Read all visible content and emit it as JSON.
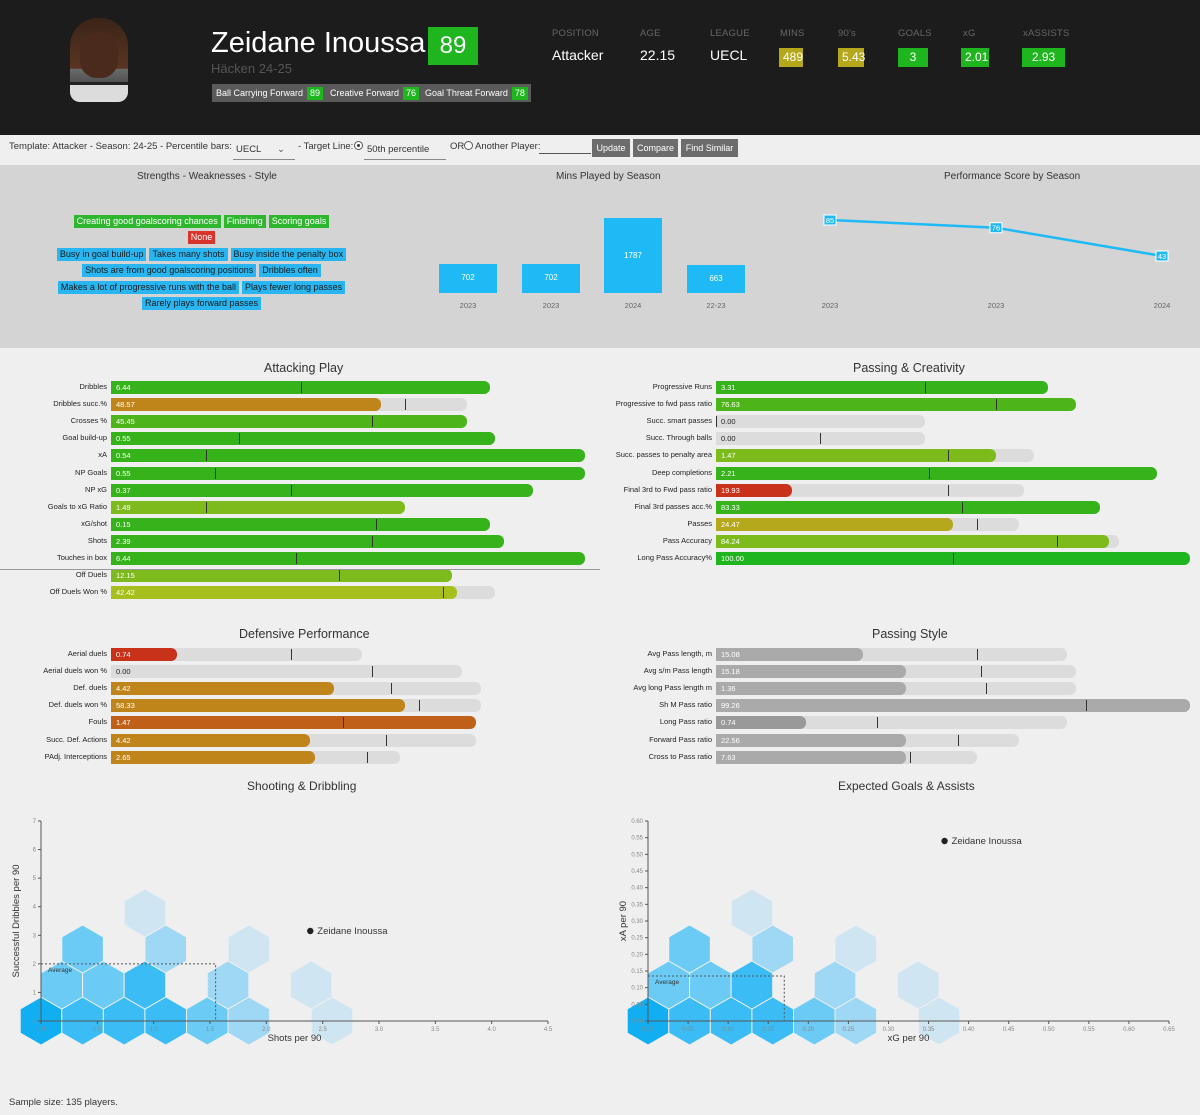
{
  "player": {
    "name": "Zeidane Inoussa",
    "rating": "89",
    "team": "Häcken 24-25",
    "roles": [
      {
        "label": "Ball Carrying Forward",
        "value": "89"
      },
      {
        "label": "Creative Forward",
        "value": "76"
      },
      {
        "label": "Goal Threat Forward",
        "value": "78"
      }
    ]
  },
  "stats": [
    {
      "label": "POSITION",
      "value": "Attacker"
    },
    {
      "label": "AGE",
      "value": "22.15"
    },
    {
      "label": "LEAGUE",
      "value": "UECL"
    },
    {
      "label": "MINS",
      "value": "489",
      "color": "#b5a81c"
    },
    {
      "label": "90's",
      "value": "5.43",
      "color": "#b5a81c"
    },
    {
      "label": "GOALS",
      "value": "3",
      "color": "#1fb51f"
    },
    {
      "label": "xG",
      "value": "2.01",
      "color": "#1fb51f"
    },
    {
      "label": "xASSISTS",
      "value": "2.93",
      "color": "#1fb51f"
    }
  ],
  "toolbar": {
    "template_text": "Template: Attacker - Season: 24-25 - Percentile bars:",
    "percentile_select": "UECL",
    "target_line_label": "- Target Line:",
    "target_select": "50th percentile",
    "or_label": "OR",
    "another_player_label": "Another Player:",
    "update": "Update",
    "compare": "Compare",
    "find_similar": "Find Similar"
  },
  "strengths_title": "Strengths - Weaknesses - Style",
  "strengths": [
    "Creating good goalscoring chances",
    "Finishing",
    "Scoring goals"
  ],
  "weaknesses": [
    "None"
  ],
  "style": [
    [
      "Busy in goal build-up",
      "Takes many shots",
      "Busy inside the penalty box"
    ],
    [
      "Shots are from good goalscoring positions",
      "Dribbles often"
    ],
    [
      "Makes a lot of progressive runs with the ball",
      "Plays fewer long passes"
    ],
    [
      "Rarely plays forward passes"
    ]
  ],
  "mins_chart": {
    "title": "Mins Played by Season",
    "type": "bar",
    "categories": [
      "2023",
      "2023",
      "2024",
      "22-23"
    ],
    "values": [
      702,
      702,
      1787,
      663
    ]
  },
  "perf_chart": {
    "title": "Performance Score by Season",
    "type": "line",
    "x": [
      "2023",
      "2023",
      "2024"
    ],
    "values": [
      85,
      76,
      43
    ]
  },
  "sections": [
    {
      "title": "Attacking Play",
      "bars": [
        {
          "label": "Dribbles",
          "value": "6.44",
          "color": "#36b21a",
          "pct": 0.8,
          "track": 0.8,
          "mark": 0.4
        },
        {
          "label": "Dribbles succ.%",
          "value": "48.57",
          "color": "#c0851a",
          "pct": 0.57,
          "track": 0.75,
          "mark": 0.62
        },
        {
          "label": "Crosses %",
          "value": "45.45",
          "color": "#4db51a",
          "pct": 0.75,
          "track": 0.75,
          "mark": 0.55
        },
        {
          "label": "Goal build-up",
          "value": "0.55",
          "color": "#36b21a",
          "pct": 0.81,
          "track": 0.81,
          "mark": 0.27
        },
        {
          "label": "xA",
          "value": "0.54",
          "color": "#36b21a",
          "pct": 1.0,
          "track": 1.0,
          "mark": 0.2
        },
        {
          "label": "NP Goals",
          "value": "0.55",
          "color": "#36b21a",
          "pct": 1.0,
          "track": 1.0,
          "mark": 0.22
        },
        {
          "label": "NP xG",
          "value": "0.37",
          "color": "#36b21a",
          "pct": 0.89,
          "track": 0.89,
          "mark": 0.38
        },
        {
          "label": "Goals to xG Ratio",
          "value": "1.49",
          "color": "#7dbb1c",
          "pct": 0.62,
          "track": 0.62,
          "mark": 0.2
        },
        {
          "label": "xG/shot",
          "value": "0.15",
          "color": "#36b21a",
          "pct": 0.8,
          "track": 0.8,
          "mark": 0.56
        },
        {
          "label": "Shots",
          "value": "2.39",
          "color": "#36b21a",
          "pct": 0.83,
          "track": 0.83,
          "mark": 0.55
        },
        {
          "label": "Touches in box",
          "value": "6.44",
          "color": "#36b21a",
          "pct": 1.0,
          "track": 1.0,
          "mark": 0.39
        },
        {
          "label": "Off Duels",
          "value": "12.15",
          "color": "#7dbb1c",
          "pct": 0.72,
          "track": 0.72,
          "mark": 0.48
        },
        {
          "label": "Off Duels Won %",
          "value": "42.42",
          "color": "#a7bf1c",
          "pct": 0.73,
          "track": 0.81,
          "mark": 0.7
        }
      ]
    },
    {
      "title": "Passing & Creativity",
      "bars": [
        {
          "label": "Progressive Runs",
          "value": "3.31",
          "color": "#36b21a",
          "pct": 0.7,
          "track": 0.7,
          "mark": 0.44
        },
        {
          "label": "Progressive to fwd pass ratio",
          "value": "76.63",
          "color": "#4db51a",
          "pct": 0.76,
          "track": 0.76,
          "mark": 0.59
        },
        {
          "label": "Succ. smart passes",
          "value": "0.00",
          "color": "#999",
          "pct": 0.0,
          "track": 0.44,
          "mark": 0.0
        },
        {
          "label": "Succ. Through balls",
          "value": "0.00",
          "color": "#999",
          "pct": 0.0,
          "track": 0.44,
          "mark": 0.22
        },
        {
          "label": "Succ. passes to penalty area",
          "value": "1.47",
          "color": "#7dbb1c",
          "pct": 0.59,
          "track": 0.67,
          "mark": 0.49
        },
        {
          "label": "Deep completions",
          "value": "2.21",
          "color": "#36b21a",
          "pct": 0.93,
          "track": 0.93,
          "mark": 0.45
        },
        {
          "label": "Final 3rd to Fwd pass ratio",
          "value": "19.93",
          "color": "#c8321b",
          "pct": 0.16,
          "track": 0.65,
          "mark": 0.49
        },
        {
          "label": "Final 3rd passes acc.%",
          "value": "83.33",
          "color": "#36b21a",
          "pct": 0.81,
          "track": 0.81,
          "mark": 0.52
        },
        {
          "label": "Passes",
          "value": "24.47",
          "color": "#b5a81c",
          "pct": 0.5,
          "track": 0.64,
          "mark": 0.55
        },
        {
          "label": "Pass Accuracy",
          "value": "84.24",
          "color": "#7dbb1c",
          "pct": 0.83,
          "track": 0.85,
          "mark": 0.72
        },
        {
          "label": "Long Pass Accuracy%",
          "value": "100.00",
          "color": "#1fb51f",
          "pct": 1.0,
          "track": 1.0,
          "mark": 0.5
        }
      ]
    },
    {
      "title": "Defensive Performance",
      "bars": [
        {
          "label": "Aerial duels",
          "value": "0.74",
          "color": "#c8321b",
          "pct": 0.14,
          "track": 0.53,
          "mark": 0.38
        },
        {
          "label": "Aerial duels won %",
          "value": "0.00",
          "color": "#999",
          "pct": 0.0,
          "track": 0.74,
          "mark": 0.55
        },
        {
          "label": "Def. duels",
          "value": "4.42",
          "color": "#c0851a",
          "pct": 0.47,
          "track": 0.78,
          "mark": 0.59
        },
        {
          "label": "Def. duels won %",
          "value": "58.33",
          "color": "#c0851a",
          "pct": 0.62,
          "track": 0.78,
          "mark": 0.65
        },
        {
          "label": "Fouls",
          "value": "1.47",
          "color": "#c06018",
          "pct": 0.77,
          "track": 0.77,
          "mark": 0.49
        },
        {
          "label": "Succ. Def. Actions",
          "value": "4.42",
          "color": "#c0851a",
          "pct": 0.42,
          "track": 0.77,
          "mark": 0.58
        },
        {
          "label": "PAdj. Interceptions",
          "value": "2.65",
          "color": "#c0851a",
          "pct": 0.43,
          "track": 0.61,
          "mark": 0.54
        }
      ]
    },
    {
      "title": "Passing Style",
      "bars": [
        {
          "label": "Avg Pass length, m",
          "value": "15.08",
          "color": "#aaaaaa",
          "pct": 0.31,
          "track": 0.74,
          "mark": 0.55
        },
        {
          "label": "Avg s/m Pass length",
          "value": "15.18",
          "color": "#aaaaaa",
          "pct": 0.4,
          "track": 0.76,
          "mark": 0.56
        },
        {
          "label": "Avg long Pass length m",
          "value": "1.36",
          "color": "#aaaaaa",
          "pct": 0.4,
          "track": 0.76,
          "mark": 0.57
        },
        {
          "label": "Sh M Pass ratio",
          "value": "99.26",
          "color": "#aaaaaa",
          "pct": 1.0,
          "track": 1.0,
          "mark": 0.78
        },
        {
          "label": "Long Pass ratio",
          "value": "0.74",
          "color": "#999",
          "pct": 0.19,
          "track": 0.74,
          "mark": 0.34
        },
        {
          "label": "Forward Pass ratio",
          "value": "22.56",
          "color": "#aaaaaa",
          "pct": 0.4,
          "track": 0.64,
          "mark": 0.51
        },
        {
          "label": "Cross to Pass ratio",
          "value": "7.63",
          "color": "#aaaaaa",
          "pct": 0.4,
          "track": 0.55,
          "mark": 0.41
        }
      ]
    }
  ],
  "shooting_chart": {
    "title": "Shooting & Dribbling",
    "type": "scatter",
    "xlabel": "Shots per 90",
    "ylabel": "Successful Dribbles per 90",
    "xlim": [
      0,
      4.5
    ],
    "ylim": [
      0,
      7
    ],
    "xticks": [
      "0.0",
      "0.5",
      "1.0",
      "1.5",
      "2.0",
      "2.5",
      "3.0",
      "3.5",
      "4.0",
      "4.5"
    ],
    "yticks": [
      "0",
      "1",
      "2",
      "3",
      "4",
      "5",
      "6",
      "7"
    ],
    "average_label": "Average",
    "average": {
      "x": 1.55,
      "y": 2.0
    },
    "player": {
      "name": "Zeidane Inoussa",
      "x": 2.39,
      "y": 3.15
    }
  },
  "xg_chart": {
    "title": "Expected Goals & Assists",
    "type": "scatter",
    "xlabel": "xG per 90",
    "ylabel": "xA per 90",
    "xlim": [
      0,
      0.65
    ],
    "ylim": [
      0,
      0.6
    ],
    "xticks": [
      "0.00",
      "0.05",
      "0.10",
      "0.15",
      "0.20",
      "0.25",
      "0.30",
      "0.35",
      "0.40",
      "0.45",
      "0.50",
      "0.55",
      "0.60",
      "0.65"
    ],
    "yticks": [
      "0.00",
      "0.05",
      "0.10",
      "0.15",
      "0.20",
      "0.25",
      "0.30",
      "0.35",
      "0.40",
      "0.45",
      "0.50",
      "0.55",
      "0.60"
    ],
    "average_label": "Average",
    "average": {
      "x": 0.17,
      "y": 0.135
    },
    "player": {
      "name": "Zeidane Inoussa",
      "x": 0.37,
      "y": 0.54
    }
  },
  "sample_size": "Sample size: 135 players."
}
